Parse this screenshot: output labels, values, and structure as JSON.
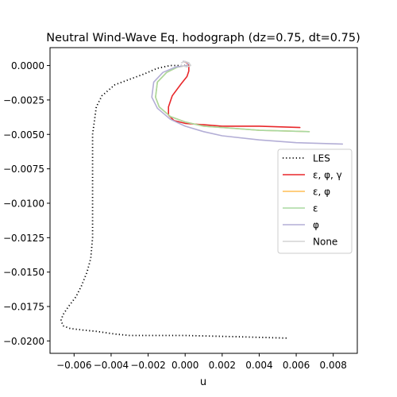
{
  "chart_data": {
    "type": "line",
    "title": "Neutral Wind-Wave Eq. hodograph (dz=0.75, dt=0.75)",
    "xlabel": "u",
    "ylabel": "",
    "xlim": [
      -0.0073,
      0.0093
    ],
    "ylim": [
      -0.0209,
      0.0013
    ],
    "xticks": [
      -0.006,
      -0.004,
      -0.002,
      0.0,
      0.002,
      0.004,
      0.006,
      0.008
    ],
    "xtick_labels": [
      "−0.006",
      "−0.004",
      "−0.002",
      "0.000",
      "0.002",
      "0.004",
      "0.006",
      "0.008"
    ],
    "yticks": [
      0.0,
      -0.0025,
      -0.005,
      -0.0075,
      -0.01,
      -0.0125,
      -0.015,
      -0.0175,
      -0.02
    ],
    "ytick_labels": [
      "0.0000",
      "−0.0025",
      "−0.0050",
      "−0.0075",
      "−0.0100",
      "−0.0125",
      "−0.0150",
      "−0.0175",
      "−0.0200"
    ],
    "grid": false,
    "legend_position": "center-right",
    "series": [
      {
        "name": "LES",
        "color": "#000000",
        "style": "dotted",
        "x": [
          0.0,
          -0.0008,
          -0.0015,
          -0.0022,
          -0.003,
          -0.0038,
          -0.0045,
          -0.0048,
          -0.005,
          -0.005,
          -0.005,
          -0.005,
          -0.0051,
          -0.0053,
          -0.0056,
          -0.0059,
          -0.0063,
          -0.0066,
          -0.0067,
          -0.0066,
          -0.0062,
          -0.0056,
          -0.0048,
          -0.0038,
          -0.003,
          0.0,
          0.003,
          0.0056
        ],
        "y": [
          0.0,
          0.0,
          -0.0002,
          -0.0006,
          -0.001,
          -0.0014,
          -0.0022,
          -0.003,
          -0.005,
          -0.0075,
          -0.01,
          -0.0125,
          -0.014,
          -0.015,
          -0.016,
          -0.0168,
          -0.0175,
          -0.0181,
          -0.0185,
          -0.0189,
          -0.0191,
          -0.0192,
          -0.0193,
          -0.0195,
          -0.0196,
          -0.0196,
          -0.0197,
          -0.0198
        ]
      },
      {
        "name": "ε, φ, γ",
        "color": "#e8272a",
        "style": "solid",
        "x": [
          -0.0001,
          0.0001,
          0.0002,
          0.0002,
          0.0001,
          -0.0002,
          -0.0007,
          -0.0009,
          -0.0009,
          -0.0006,
          0.0,
          0.001,
          0.002,
          0.004,
          0.0062
        ],
        "y": [
          0.0003,
          0.0002,
          0.0,
          -0.0004,
          -0.0008,
          -0.0013,
          -0.0022,
          -0.003,
          -0.0036,
          -0.004,
          -0.0042,
          -0.0043,
          -0.0044,
          -0.0044,
          -0.0045
        ]
      },
      {
        "name": "ε, φ",
        "color": "#ffbe55",
        "style": "solid",
        "x": [
          -0.0001,
          0.0002,
          0.0001,
          -0.0004,
          -0.001,
          -0.0015,
          -0.0016,
          -0.0014,
          -0.0008,
          0.0,
          0.001,
          0.002,
          0.004,
          0.0067
        ],
        "y": [
          0.0003,
          0.0002,
          0.0,
          -0.0001,
          -0.0005,
          -0.0012,
          -0.0023,
          -0.003,
          -0.0037,
          -0.0041,
          -0.0044,
          -0.0045,
          -0.0047,
          -0.0048
        ]
      },
      {
        "name": "ε",
        "color": "#a8d8a0",
        "style": "solid",
        "x": [
          -0.0001,
          0.0002,
          0.0001,
          -0.0004,
          -0.001,
          -0.0015,
          -0.0016,
          -0.0014,
          -0.0008,
          0.0,
          0.001,
          0.002,
          0.004,
          0.0067
        ],
        "y": [
          0.0003,
          0.0002,
          0.0,
          -0.0001,
          -0.0005,
          -0.0012,
          -0.0023,
          -0.003,
          -0.0037,
          -0.0041,
          -0.0044,
          -0.0045,
          -0.0047,
          -0.0048
        ]
      },
      {
        "name": "φ",
        "color": "#b3aed6",
        "style": "solid",
        "x": [
          -0.0001,
          0.0002,
          0.0001,
          -0.0005,
          -0.0012,
          -0.0017,
          -0.0018,
          -0.0015,
          -0.0008,
          0.0,
          0.001,
          0.002,
          0.004,
          0.006,
          0.0085
        ],
        "y": [
          0.0003,
          0.0002,
          0.0,
          -0.0001,
          -0.0005,
          -0.0012,
          -0.0023,
          -0.0031,
          -0.0039,
          -0.0044,
          -0.0048,
          -0.0051,
          -0.0054,
          -0.0056,
          -0.0057
        ]
      },
      {
        "name": "None",
        "color": "#d4d4d4",
        "style": "solid",
        "x": [
          -0.0002,
          0.0,
          0.0002,
          0.0003,
          0.0001,
          -0.0002
        ],
        "y": [
          0.0002,
          0.0003,
          0.0002,
          0.0,
          -0.0001,
          0.0
        ]
      }
    ]
  }
}
